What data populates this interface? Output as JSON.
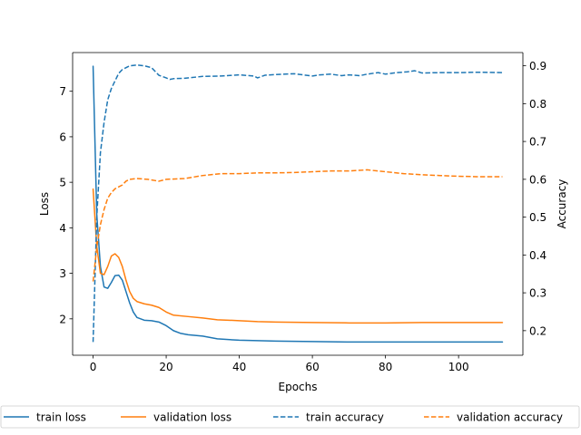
{
  "chart_data": {
    "type": "line",
    "title": "",
    "xlabel": "Epochs",
    "ylabel_left": "Loss",
    "ylabel_right": "Accuracy",
    "xlim": [
      -5.6,
      117.6
    ],
    "ylim_left": [
      1.2,
      7.85
    ],
    "ylim_right": [
      0.135,
      0.935
    ],
    "xticks": [
      0,
      20,
      40,
      60,
      80,
      100
    ],
    "yticks_left": [
      2,
      3,
      4,
      5,
      6,
      7
    ],
    "yticks_right": [
      0.2,
      0.3,
      0.4,
      0.5,
      0.6,
      0.7,
      0.8,
      0.9
    ],
    "grid": false,
    "legend_position": "bottom",
    "series": [
      {
        "name": "train loss",
        "axis": "left",
        "style": "solid",
        "color": "#1f77b4",
        "points": [
          [
            0,
            7.55
          ],
          [
            1,
            4.3
          ],
          [
            2,
            3.15
          ],
          [
            3,
            2.7
          ],
          [
            4,
            2.67
          ],
          [
            5,
            2.8
          ],
          [
            6,
            2.95
          ],
          [
            7,
            2.96
          ],
          [
            8,
            2.85
          ],
          [
            9,
            2.6
          ],
          [
            10,
            2.35
          ],
          [
            11,
            2.15
          ],
          [
            12,
            2.03
          ],
          [
            14,
            1.97
          ],
          [
            16,
            1.96
          ],
          [
            18,
            1.93
          ],
          [
            20,
            1.85
          ],
          [
            22,
            1.74
          ],
          [
            24,
            1.68
          ],
          [
            26,
            1.65
          ],
          [
            30,
            1.62
          ],
          [
            34,
            1.56
          ],
          [
            40,
            1.53
          ],
          [
            50,
            1.51
          ],
          [
            60,
            1.5
          ],
          [
            70,
            1.49
          ],
          [
            80,
            1.49
          ],
          [
            90,
            1.49
          ],
          [
            100,
            1.49
          ],
          [
            112,
            1.49
          ]
        ]
      },
      {
        "name": "validation loss",
        "axis": "left",
        "style": "solid",
        "color": "#ff7f0e",
        "points": [
          [
            0,
            4.85
          ],
          [
            1,
            3.6
          ],
          [
            2,
            3.0
          ],
          [
            3,
            2.97
          ],
          [
            4,
            3.15
          ],
          [
            5,
            3.38
          ],
          [
            6,
            3.43
          ],
          [
            7,
            3.35
          ],
          [
            8,
            3.15
          ],
          [
            9,
            2.85
          ],
          [
            10,
            2.6
          ],
          [
            11,
            2.45
          ],
          [
            12,
            2.38
          ],
          [
            14,
            2.33
          ],
          [
            16,
            2.3
          ],
          [
            18,
            2.25
          ],
          [
            20,
            2.15
          ],
          [
            22,
            2.08
          ],
          [
            26,
            2.05
          ],
          [
            30,
            2.02
          ],
          [
            34,
            1.98
          ],
          [
            40,
            1.96
          ],
          [
            45,
            1.94
          ],
          [
            50,
            1.93
          ],
          [
            60,
            1.92
          ],
          [
            70,
            1.91
          ],
          [
            80,
            1.91
          ],
          [
            90,
            1.92
          ],
          [
            100,
            1.92
          ],
          [
            112,
            1.92
          ]
        ]
      },
      {
        "name": "train accuracy",
        "axis": "right",
        "style": "dashed",
        "color": "#1f77b4",
        "points": [
          [
            0,
            0.17
          ],
          [
            1,
            0.5
          ],
          [
            2,
            0.67
          ],
          [
            3,
            0.75
          ],
          [
            4,
            0.81
          ],
          [
            5,
            0.84
          ],
          [
            6,
            0.86
          ],
          [
            7,
            0.88
          ],
          [
            8,
            0.89
          ],
          [
            9,
            0.895
          ],
          [
            10,
            0.9
          ],
          [
            12,
            0.902
          ],
          [
            14,
            0.9
          ],
          [
            16,
            0.895
          ],
          [
            18,
            0.875
          ],
          [
            20,
            0.868
          ],
          [
            21,
            0.864
          ],
          [
            22,
            0.866
          ],
          [
            25,
            0.867
          ],
          [
            30,
            0.872
          ],
          [
            35,
            0.873
          ],
          [
            40,
            0.876
          ],
          [
            44,
            0.873
          ],
          [
            45,
            0.868
          ],
          [
            47,
            0.875
          ],
          [
            50,
            0.877
          ],
          [
            55,
            0.879
          ],
          [
            60,
            0.873
          ],
          [
            62,
            0.876
          ],
          [
            65,
            0.878
          ],
          [
            68,
            0.874
          ],
          [
            70,
            0.876
          ],
          [
            73,
            0.874
          ],
          [
            75,
            0.878
          ],
          [
            78,
            0.882
          ],
          [
            80,
            0.878
          ],
          [
            83,
            0.882
          ],
          [
            86,
            0.884
          ],
          [
            88,
            0.887
          ],
          [
            90,
            0.881
          ],
          [
            95,
            0.882
          ],
          [
            100,
            0.882
          ],
          [
            105,
            0.883
          ],
          [
            112,
            0.882
          ]
        ]
      },
      {
        "name": "validation accuracy",
        "axis": "right",
        "style": "dashed",
        "color": "#ff7f0e",
        "points": [
          [
            0,
            0.33
          ],
          [
            1,
            0.42
          ],
          [
            2,
            0.48
          ],
          [
            3,
            0.52
          ],
          [
            4,
            0.55
          ],
          [
            5,
            0.565
          ],
          [
            6,
            0.575
          ],
          [
            7,
            0.58
          ],
          [
            8,
            0.585
          ],
          [
            9,
            0.595
          ],
          [
            10,
            0.6
          ],
          [
            12,
            0.602
          ],
          [
            15,
            0.6
          ],
          [
            18,
            0.595
          ],
          [
            20,
            0.6
          ],
          [
            25,
            0.602
          ],
          [
            30,
            0.61
          ],
          [
            35,
            0.615
          ],
          [
            40,
            0.615
          ],
          [
            45,
            0.617
          ],
          [
            50,
            0.617
          ],
          [
            55,
            0.618
          ],
          [
            60,
            0.62
          ],
          [
            65,
            0.622
          ],
          [
            70,
            0.622
          ],
          [
            75,
            0.625
          ],
          [
            80,
            0.62
          ],
          [
            85,
            0.615
          ],
          [
            90,
            0.612
          ],
          [
            95,
            0.61
          ],
          [
            100,
            0.608
          ],
          [
            105,
            0.607
          ],
          [
            112,
            0.607
          ]
        ]
      }
    ]
  }
}
